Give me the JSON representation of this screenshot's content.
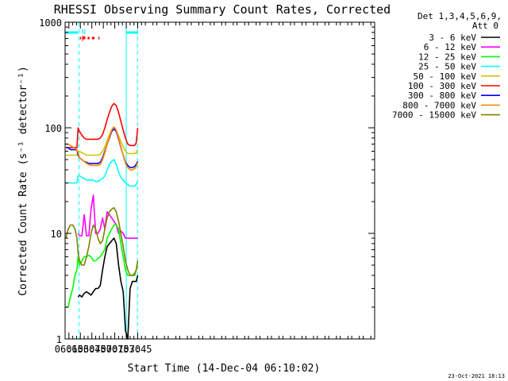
{
  "chart_data": {
    "type": "line",
    "title": "RHESSI Observing Summary Count Rates, Corrected",
    "xlabel": "Start Time (14-Dec-04 06:10:02)",
    "ylabel": "Corrected Count Rate (s⁻¹ detector⁻¹)",
    "yscale": "log",
    "ylim": [
      1,
      1000
    ],
    "xlim_min": [
      370,
      775
    ],
    "y_ticks": [
      "1",
      "10",
      "100",
      "1000"
    ],
    "x_ticks": [
      {
        "label": "06:15",
        "min": 375
      },
      {
        "label": "06:30",
        "min": 390
      },
      {
        "label": "06:45",
        "min": 405
      },
      {
        "label": "07:00",
        "min": 420
      },
      {
        "label": "07:15",
        "min": 435
      },
      {
        "label": "07:30",
        "min": 450
      },
      {
        "label": "07:45",
        "min": 465
      }
    ],
    "grid": false,
    "legend_position": "right",
    "legend_header": [
      "Det 1,3,4,5,6,9,",
      "Att 0"
    ],
    "footer_date": "23-Oct-2021 18:13",
    "flags": {
      "night_label": "N",
      "flare_label": "F",
      "night_color": "#00ffff",
      "flare_color": "#ff0000",
      "night_intervals": [
        [
          370,
          387
        ],
        [
          450,
          465.5
        ]
      ],
      "flare_intervals": [
        [
          389.5,
          391
        ],
        [
          393,
          396.5
        ],
        [
          399.5,
          402
        ],
        [
          405,
          408.5
        ],
        [
          413.5,
          415
        ]
      ],
      "night_boundaries": [
        388.2,
        464.7
      ]
    },
    "x_minutes": [
      371,
      374,
      377,
      380,
      383,
      385.5,
      387,
      389,
      392,
      395,
      398,
      401,
      404,
      407,
      410,
      413,
      416,
      419,
      422,
      425,
      428,
      431,
      434,
      437,
      440,
      443,
      446,
      449,
      452,
      455,
      458,
      461,
      463,
      465
    ],
    "series": [
      {
        "name": "3 - 6 keV",
        "color": "#000000",
        "values": [
          null,
          null,
          null,
          null,
          null,
          null,
          2.5,
          2.6,
          2.5,
          2.7,
          2.8,
          2.7,
          2.6,
          2.8,
          3,
          3,
          3.2,
          4.5,
          6,
          7.5,
          8,
          8.5,
          9,
          8,
          5,
          3.5,
          2.8,
          1.2,
          1,
          3,
          3.5,
          3.5,
          3.5,
          4
        ]
      },
      {
        "name": "6 - 12 keV",
        "color": "#ff00ff",
        "values": [
          null,
          null,
          null,
          null,
          null,
          null,
          10,
          9.5,
          9.5,
          15,
          9.5,
          9.5,
          17,
          23,
          10,
          10,
          11,
          14,
          11,
          16,
          15,
          14,
          13,
          12,
          10,
          10.5,
          10,
          9,
          9,
          9,
          9,
          9,
          9,
          9
        ]
      },
      {
        "name": "12 - 25 keV",
        "color": "#00ff00",
        "values": [
          2,
          2,
          2.5,
          3,
          4,
          4.5,
          6,
          5,
          5.5,
          6,
          6,
          6.2,
          6,
          5.5,
          5.5,
          5.8,
          6,
          6.5,
          7,
          9,
          10,
          11,
          12,
          12,
          11,
          8,
          6,
          4.5,
          4,
          4,
          4,
          4.2,
          4.5,
          5
        ]
      },
      {
        "name": "25 - 50 keV",
        "color": "#00ffff",
        "values": [
          30,
          30,
          30,
          30,
          30,
          30,
          35,
          35,
          34,
          33,
          32,
          32,
          32,
          32,
          31,
          31,
          32,
          33,
          35,
          40,
          45,
          48,
          50,
          45,
          38,
          34,
          32,
          30,
          29,
          28,
          28,
          28,
          29,
          31
        ]
      },
      {
        "name": "50 - 100 keV",
        "color": "#d4c400",
        "values": [
          55,
          55,
          55,
          55,
          55,
          55,
          60,
          60,
          58,
          57,
          55,
          55,
          55,
          55,
          55,
          55,
          56,
          60,
          66,
          76,
          86,
          96,
          102,
          95,
          84,
          74,
          66,
          60,
          57,
          57,
          57,
          57,
          58,
          62
        ]
      },
      {
        "name": "100 - 300 keV",
        "color": "#ff0000",
        "values": [
          65,
          65,
          65,
          65,
          65,
          65,
          100,
          92,
          85,
          80,
          78,
          78,
          78,
          78,
          78,
          78,
          80,
          86,
          100,
          120,
          140,
          160,
          170,
          162,
          140,
          115,
          95,
          80,
          70,
          68,
          68,
          68,
          72,
          100
        ]
      },
      {
        "name": "300 - 800 keV",
        "color": "#0000ff",
        "values": [
          65,
          65,
          62,
          62,
          62,
          62,
          55,
          52,
          50,
          48,
          47,
          46,
          46,
          46,
          46,
          46,
          47,
          52,
          60,
          70,
          80,
          92,
          98,
          92,
          78,
          65,
          55,
          47,
          44,
          42,
          42,
          43,
          45,
          48
        ]
      },
      {
        "name": "800 - 7000 keV",
        "color": "#ff8800",
        "values": [
          70,
          70,
          68,
          66,
          64,
          62,
          58,
          52,
          50,
          48,
          46,
          45,
          44,
          44,
          44,
          44,
          45,
          50,
          58,
          70,
          82,
          95,
          102,
          95,
          80,
          66,
          55,
          46,
          42,
          40,
          40,
          41,
          43,
          47
        ]
      },
      {
        "name": "7000 - 15000 keV",
        "color": "#808000",
        "values": [
          9,
          11,
          12,
          12,
          11,
          9,
          6.5,
          5.5,
          5,
          5,
          6,
          7.5,
          10,
          12,
          11,
          9,
          8,
          8.5,
          11,
          14,
          16,
          17,
          17.5,
          16,
          13,
          10,
          7.5,
          5.5,
          4.5,
          4,
          4,
          4,
          4.5,
          5.5
        ]
      }
    ]
  }
}
